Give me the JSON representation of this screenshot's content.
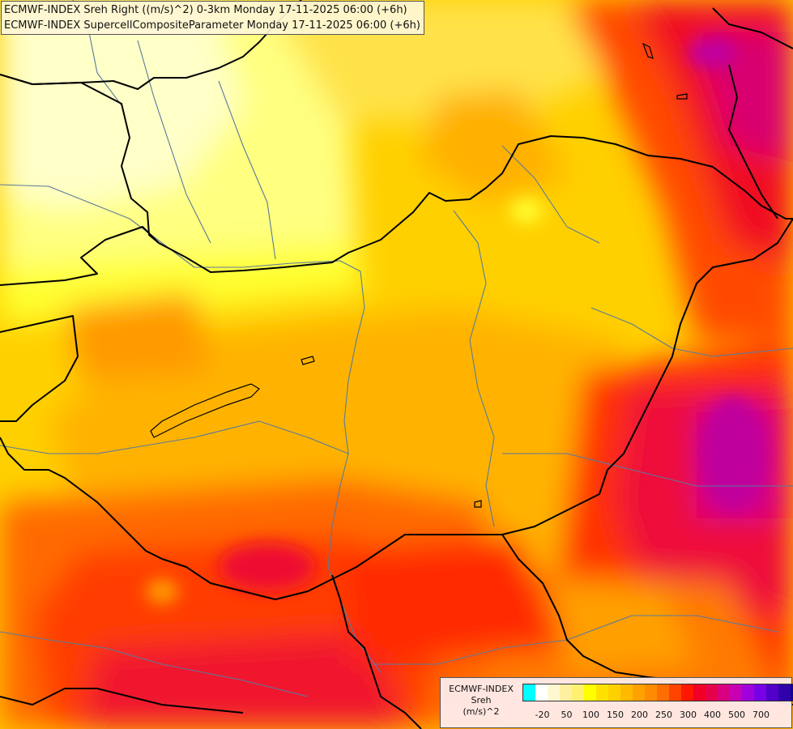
{
  "title": {
    "line1": "ECMWF-INDEX Sreh Right ((m/s)^2) 0-3km Monday 17-11-2025 06:00 (+6h)",
    "line2": "ECMWF-INDEX SupercellCompositeParameter Monday 17-11-2025 06:00 (+6h)"
  },
  "legend": {
    "name": "ECMWF-INDEX",
    "variable": "Sreh",
    "unit": "(m/s)^2",
    "colors": [
      "#00ffff",
      "#ffffff",
      "#fff7d0",
      "#ffefa0",
      "#fff070",
      "#ffff00",
      "#ffe100",
      "#ffd000",
      "#ffba00",
      "#ffa200",
      "#ff8c00",
      "#ff6e00",
      "#ff4400",
      "#ff1800",
      "#f00024",
      "#e6004c",
      "#d80080",
      "#c800b4",
      "#a000dc",
      "#7800e6",
      "#5000c8",
      "#3000aa",
      "#10008c"
    ],
    "tick_labels": [
      "-20",
      "50",
      "100",
      "150",
      "200",
      "250",
      "300",
      "400",
      "500",
      "700"
    ]
  },
  "map": {
    "background_color": "#ffd24d",
    "border_color": "#000000",
    "river_color": "#5a7a9c"
  }
}
